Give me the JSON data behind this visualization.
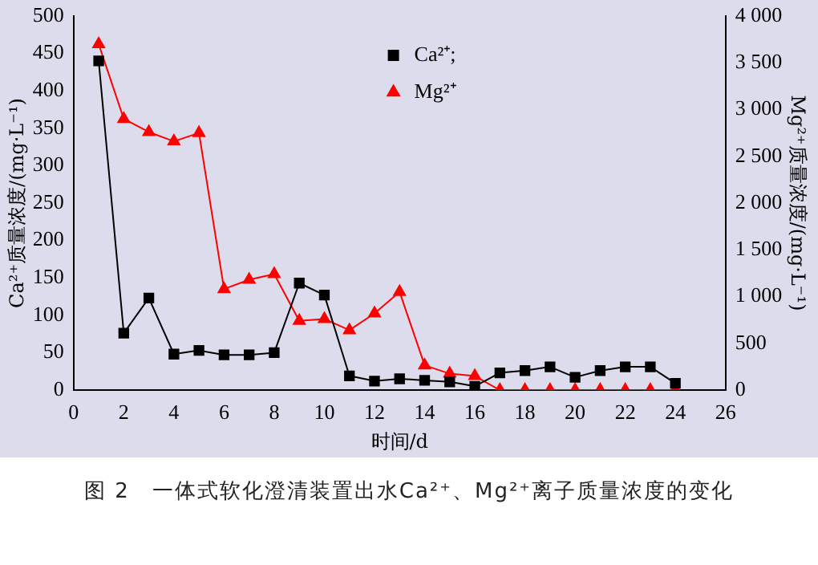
{
  "chart_data": {
    "type": "line",
    "title": "图 2　一体式软化澄清装置出水Ca²⁺、Mg²⁺离子质量浓度的变化",
    "xlabel": "时间/d",
    "ylabel": "Ca²⁺质量浓度/(mg·L⁻¹)",
    "y2label": "Mg²⁺质量浓度/(mg·L⁻¹)",
    "x": [
      1,
      2,
      3,
      4,
      5,
      6,
      7,
      8,
      9,
      10,
      11,
      12,
      13,
      14,
      15,
      16,
      17,
      18,
      19,
      20,
      21,
      22,
      23,
      24
    ],
    "series": [
      {
        "name": "Ca²⁺;",
        "color": "#000000",
        "marker": "square",
        "values": [
          440,
          76,
          123,
          48,
          53,
          47,
          47,
          50,
          143,
          127,
          19,
          12,
          15,
          13,
          11,
          5,
          23,
          26,
          31,
          17,
          26,
          31,
          31,
          9
        ]
      },
      {
        "name": "Mg²⁺",
        "color": "#ff0000",
        "marker": "triangle",
        "axis": "y2",
        "values": [
          3700,
          2900,
          2760,
          2660,
          2750,
          1080,
          1180,
          1240,
          740,
          760,
          640,
          820,
          1050,
          265,
          175,
          150,
          0,
          0,
          0,
          0,
          0,
          0,
          0,
          0
        ]
      }
    ],
    "xlim": [
      0,
      26
    ],
    "xticks": [
      0,
      2,
      4,
      6,
      8,
      10,
      12,
      14,
      16,
      18,
      20,
      22,
      24,
      26
    ],
    "ylim": [
      0,
      500
    ],
    "yticks": [
      0,
      50,
      100,
      150,
      200,
      250,
      300,
      350,
      400,
      450,
      500
    ],
    "y2lim": [
      0,
      4000
    ],
    "y2ticks": [
      0,
      {
        "value": 500,
        "label": "500"
      },
      {
        "value": 1000,
        "label": "1 000"
      },
      {
        "value": 1500,
        "label": "1 500"
      },
      {
        "value": 2000,
        "label": "2 000"
      },
      {
        "value": 2500,
        "label": "2 500"
      },
      {
        "value": 3000,
        "label": "3 000"
      },
      {
        "value": 3500,
        "label": "3 500"
      },
      {
        "value": 4000,
        "label": "4 000"
      }
    ],
    "legend": "top",
    "grid": false,
    "line_style": "solid"
  }
}
